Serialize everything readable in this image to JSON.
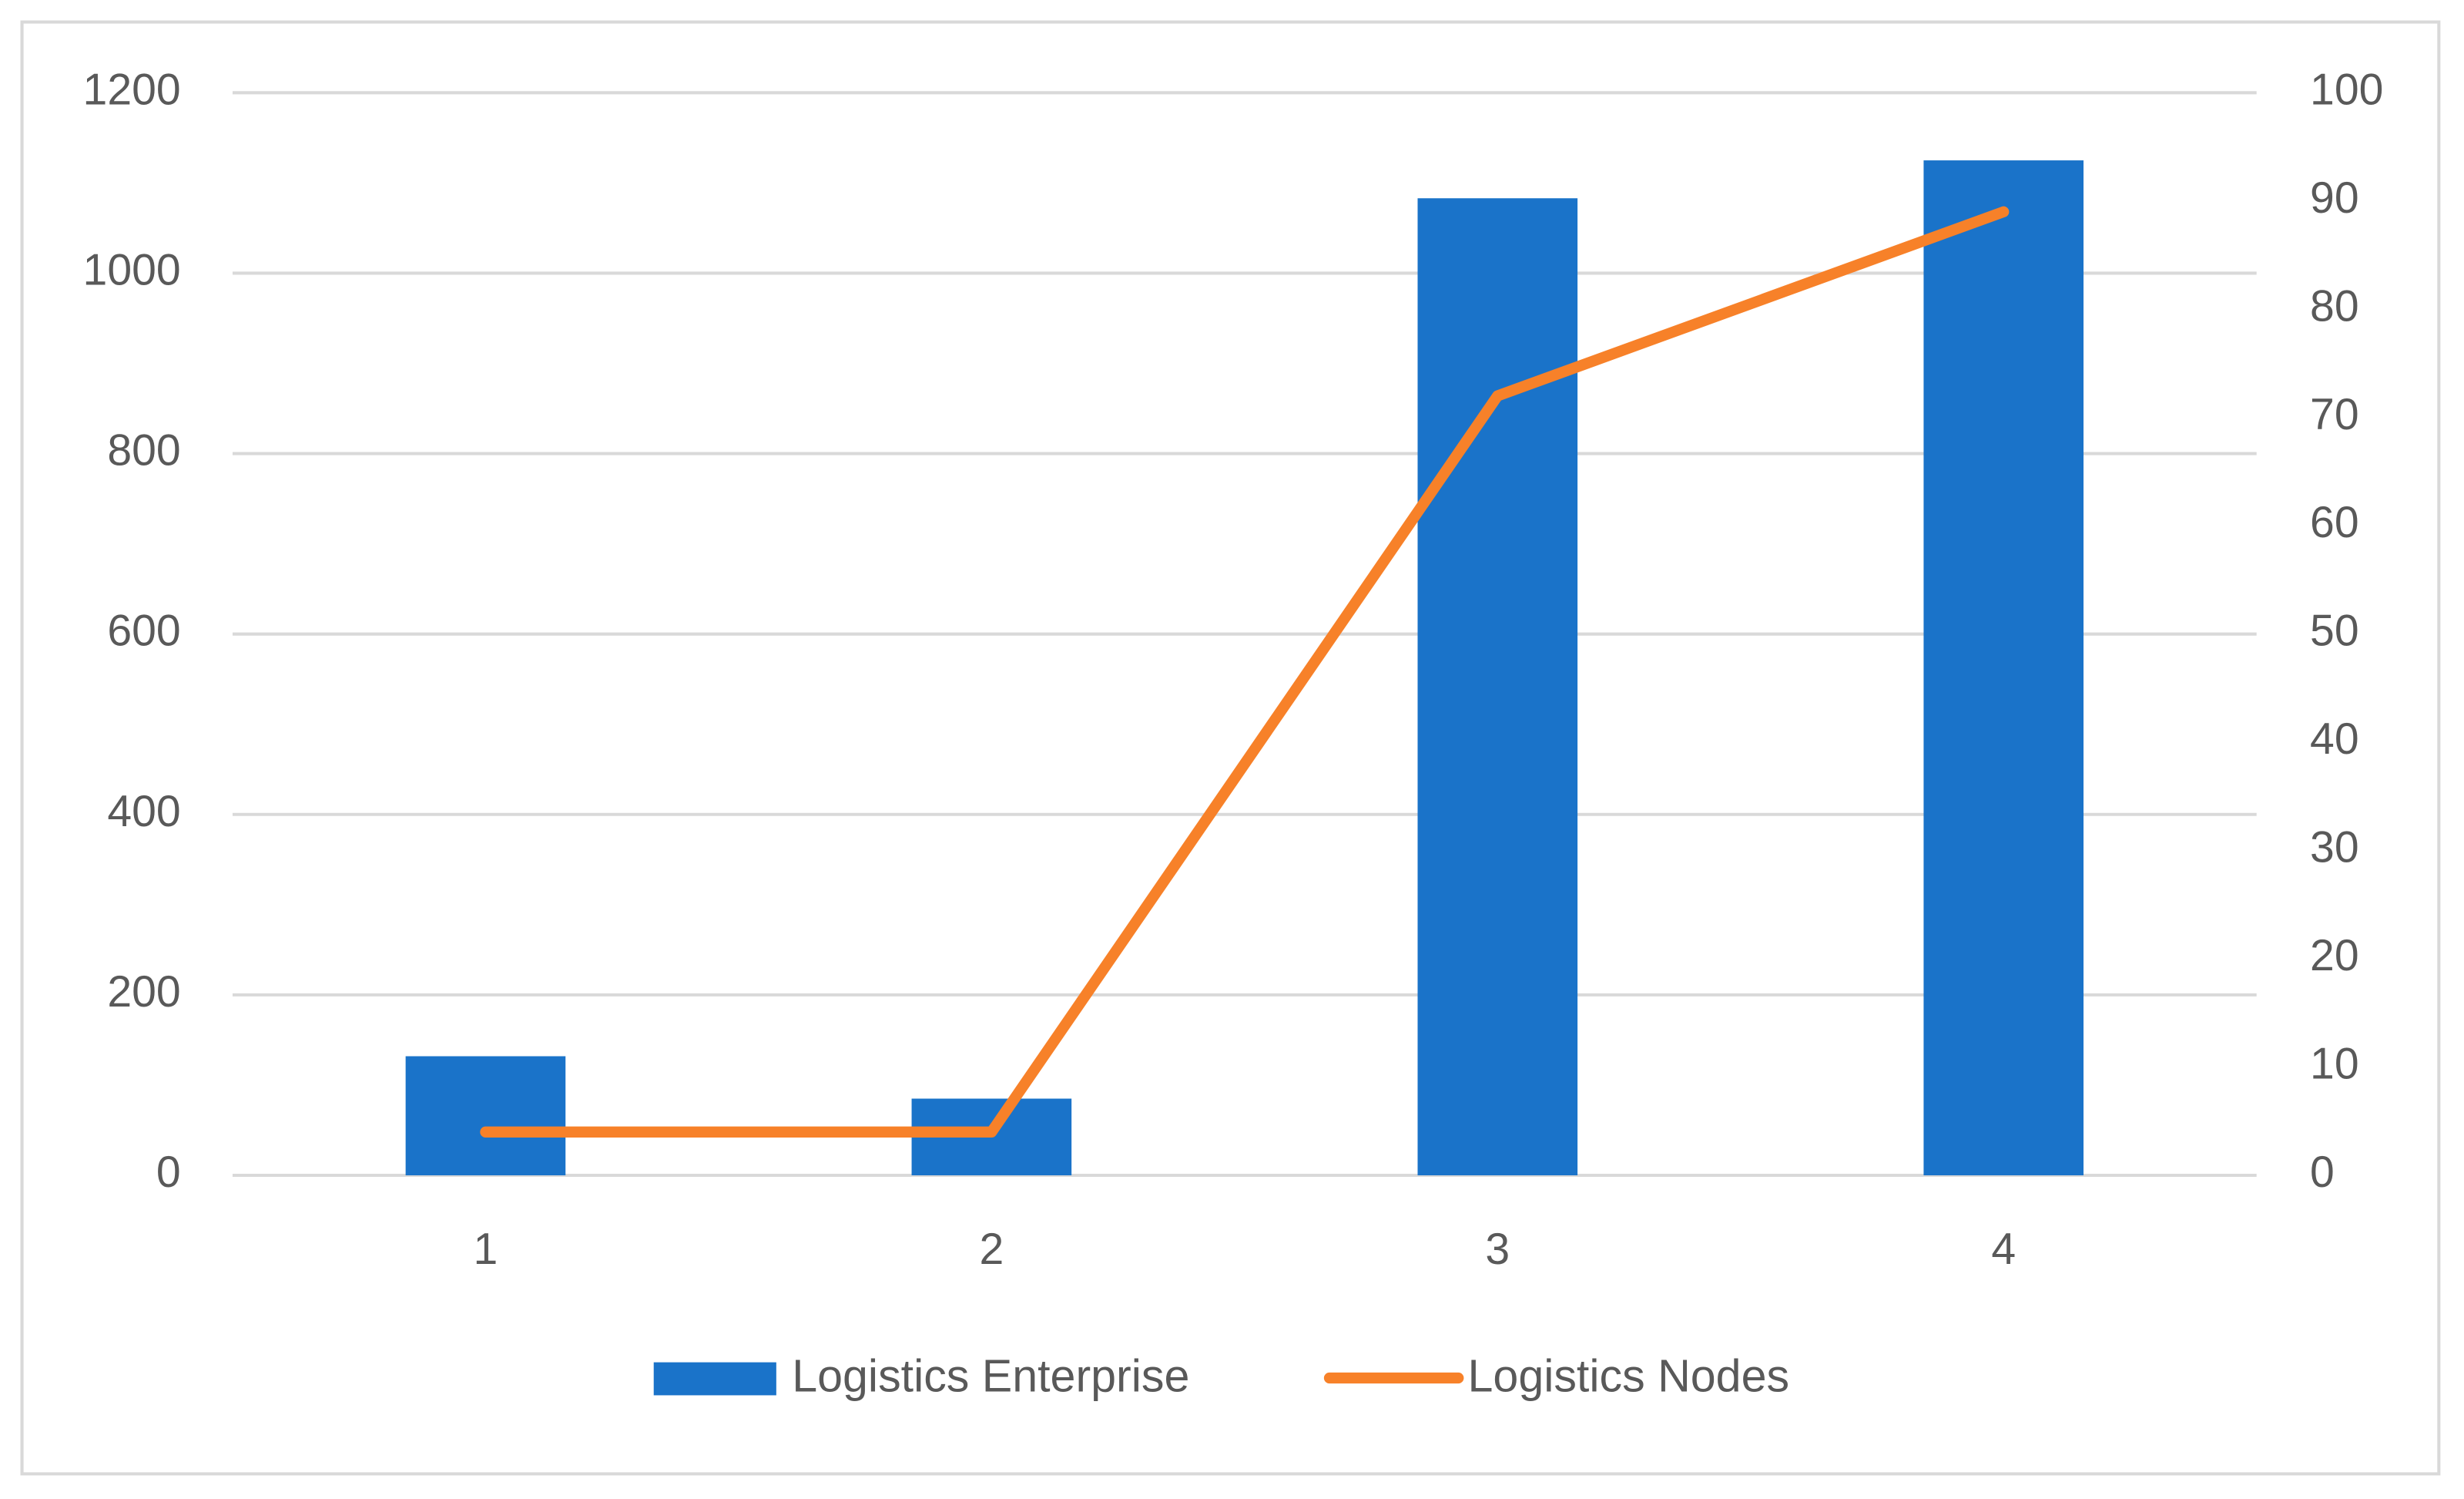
{
  "chart_data": {
    "type": "bar",
    "categories": [
      "1",
      "2",
      "3",
      "4"
    ],
    "series": [
      {
        "name": "Logistics Enterprise",
        "type": "bar",
        "color": "#1a73c9",
        "values": [
          132,
          85,
          1083,
          1125
        ]
      },
      {
        "name": "Logistics Nodes",
        "type": "line",
        "axis": "y2",
        "color": "#f78129",
        "values": [
          4,
          4,
          72,
          89
        ]
      }
    ],
    "ylim": [
      0,
      1200
    ],
    "yticks": [
      0,
      200,
      400,
      600,
      800,
      1000,
      1200
    ],
    "y2lim": [
      0,
      100
    ],
    "y2ticks": [
      0,
      10,
      20,
      30,
      40,
      50,
      60,
      70,
      80,
      90,
      100
    ],
    "grid": true,
    "legend": "bottom"
  }
}
